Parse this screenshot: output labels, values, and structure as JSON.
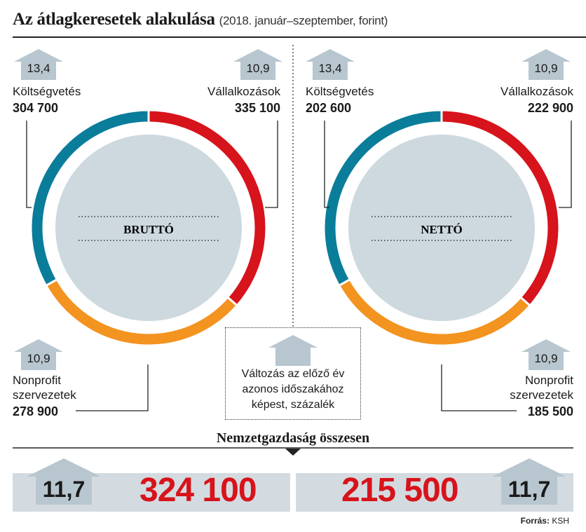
{
  "title": "Az átlagkeresetek alakulása",
  "subtitle": "(2018. január–szeptember, forint)",
  "legend": {
    "line1": "Változás az előző év",
    "line2": "azonos időszakához",
    "line3": "képest, százalék"
  },
  "total_label": "Nemzetgazdaság összesen",
  "total": {
    "brutto_value": "324 100",
    "brutto_change": "11,7",
    "netto_value": "215 500",
    "netto_change": "11,7"
  },
  "source_prefix": "Forrás:",
  "source_name": "KSH",
  "colors": {
    "koltsegvetes": "#0a7d9a",
    "vallalkozasok": "#d7131b",
    "nonprofit": "#f39320",
    "inner": "#cdd9df",
    "arrow": "#b8c6cf",
    "highlight": "#d7131b"
  },
  "chart_data": [
    {
      "type": "pie",
      "center_label": "BRUTTÓ",
      "segments": [
        {
          "name_line1": "Költségvetés",
          "name_line2": "",
          "value": 304700,
          "value_label": "304 700",
          "change": "13,4",
          "color": "#0a7d9a"
        },
        {
          "name_line1": "Vállalkozások",
          "name_line2": "",
          "value": 335100,
          "value_label": "335 100",
          "change": "10,9",
          "color": "#d7131b"
        },
        {
          "name_line1": "Nonprofit",
          "name_line2": "szervezetek",
          "value": 278900,
          "value_label": "278 900",
          "change": "10,9",
          "color": "#f39320"
        }
      ]
    },
    {
      "type": "pie",
      "center_label": "NETTÓ",
      "segments": [
        {
          "name_line1": "Költségvetés",
          "name_line2": "",
          "value": 202600,
          "value_label": "202 600",
          "change": "13,4",
          "color": "#0a7d9a"
        },
        {
          "name_line1": "Vállalkozások",
          "name_line2": "",
          "value": 222900,
          "value_label": "222 900",
          "change": "10,9",
          "color": "#d7131b"
        },
        {
          "name_line1": "Nonprofit",
          "name_line2": "szervezetek",
          "value": 185500,
          "value_label": "185 500",
          "change": "10,9",
          "color": "#f39320"
        }
      ]
    }
  ]
}
